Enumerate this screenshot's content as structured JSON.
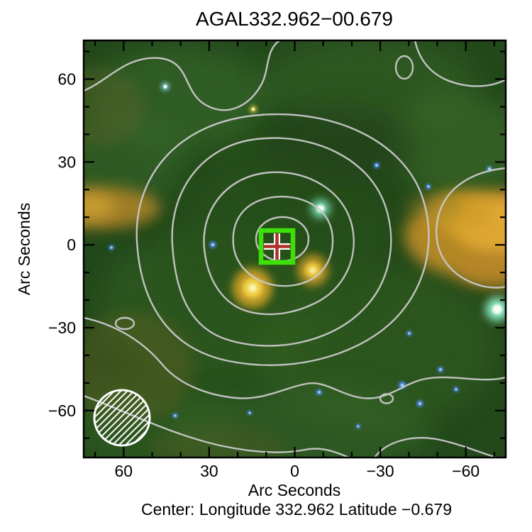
{
  "figure": {
    "title": "AGAL332.962−00.679",
    "caption": "Center:  Longitude 332.962 Latitude −0.679"
  },
  "axes": {
    "x": {
      "label": "Arc Seconds",
      "major": [
        {
          "value": 60,
          "label": "60"
        },
        {
          "value": 30,
          "label": "30"
        },
        {
          "value": 0,
          "label": "0"
        },
        {
          "value": -30,
          "label": "−30"
        },
        {
          "value": -60,
          "label": "−60"
        }
      ],
      "minor": [
        70,
        50,
        40,
        20,
        10,
        -10,
        -20,
        -40,
        -50,
        -70
      ]
    },
    "y": {
      "label": "Arc Seconds",
      "major": [
        {
          "value": 60,
          "label": "60"
        },
        {
          "value": 30,
          "label": "30"
        },
        {
          "value": 0,
          "label": "0"
        },
        {
          "value": -30,
          "label": "−30"
        },
        {
          "value": -60,
          "label": "−60"
        }
      ],
      "minor": [
        70,
        50,
        40,
        20,
        10,
        -10,
        -20,
        -40,
        -50,
        -70
      ]
    }
  },
  "colors": {
    "contour": "#c9c9c9",
    "marker_square": "#3ee00a",
    "marker_cross": "#b03028",
    "beam_outline": "#ffffff",
    "frame": "#000000",
    "background": "#ffffff"
  },
  "chart_data": {
    "type": "heatmap",
    "subtype": "three-color infrared sky image with submillimeter contour overlay",
    "title": "AGAL332.962−00.679",
    "xlabel": "Arc Seconds",
    "ylabel": "Arc Seconds",
    "xlim": [
      74,
      -74
    ],
    "ylim": [
      -77,
      74
    ],
    "x_ticks": [
      60,
      30,
      0,
      -30,
      -60
    ],
    "y_ticks": [
      60,
      30,
      0,
      -30,
      -60
    ],
    "grid": false,
    "center": {
      "longitude": 332.962,
      "latitude": -0.679
    },
    "marker": {
      "x_arcsec": 6,
      "y_arcsec": 0,
      "shape": "green square with red cross"
    },
    "beam": {
      "x_arcsec": 61,
      "y_arcsec": -63,
      "radius_arcsec": 10,
      "style": "white hatched circle"
    },
    "contours": {
      "color": "#c9c9c9",
      "levels_visible": 8,
      "peak_at": {
        "x_arcsec": 4,
        "y_arcsec": 2
      }
    },
    "features": [
      {
        "name": "central submm clump (marked)",
        "x_arcsec": 6,
        "y_arcsec": 0
      },
      {
        "name": "bright yellow compact source",
        "x_arcsec": 15,
        "y_arcsec": -16
      },
      {
        "name": "yellow compact source",
        "x_arcsec": -7,
        "y_arcsec": -9
      },
      {
        "name": "cyan point source",
        "x_arcsec": -9,
        "y_arcsec": 13
      },
      {
        "name": "bright white-cyan star at right edge",
        "x_arcsec": -71,
        "y_arcsec": -23
      },
      {
        "name": "extended orange emission region",
        "x_arcsec": -70,
        "y_arcsec": 4
      },
      {
        "name": "orange filament at left edge",
        "x_arcsec": 70,
        "y_arcsec": 14
      },
      {
        "name": "scattered faint blue stars",
        "x_arcsec": 0,
        "y_arcsec": -50
      }
    ]
  }
}
